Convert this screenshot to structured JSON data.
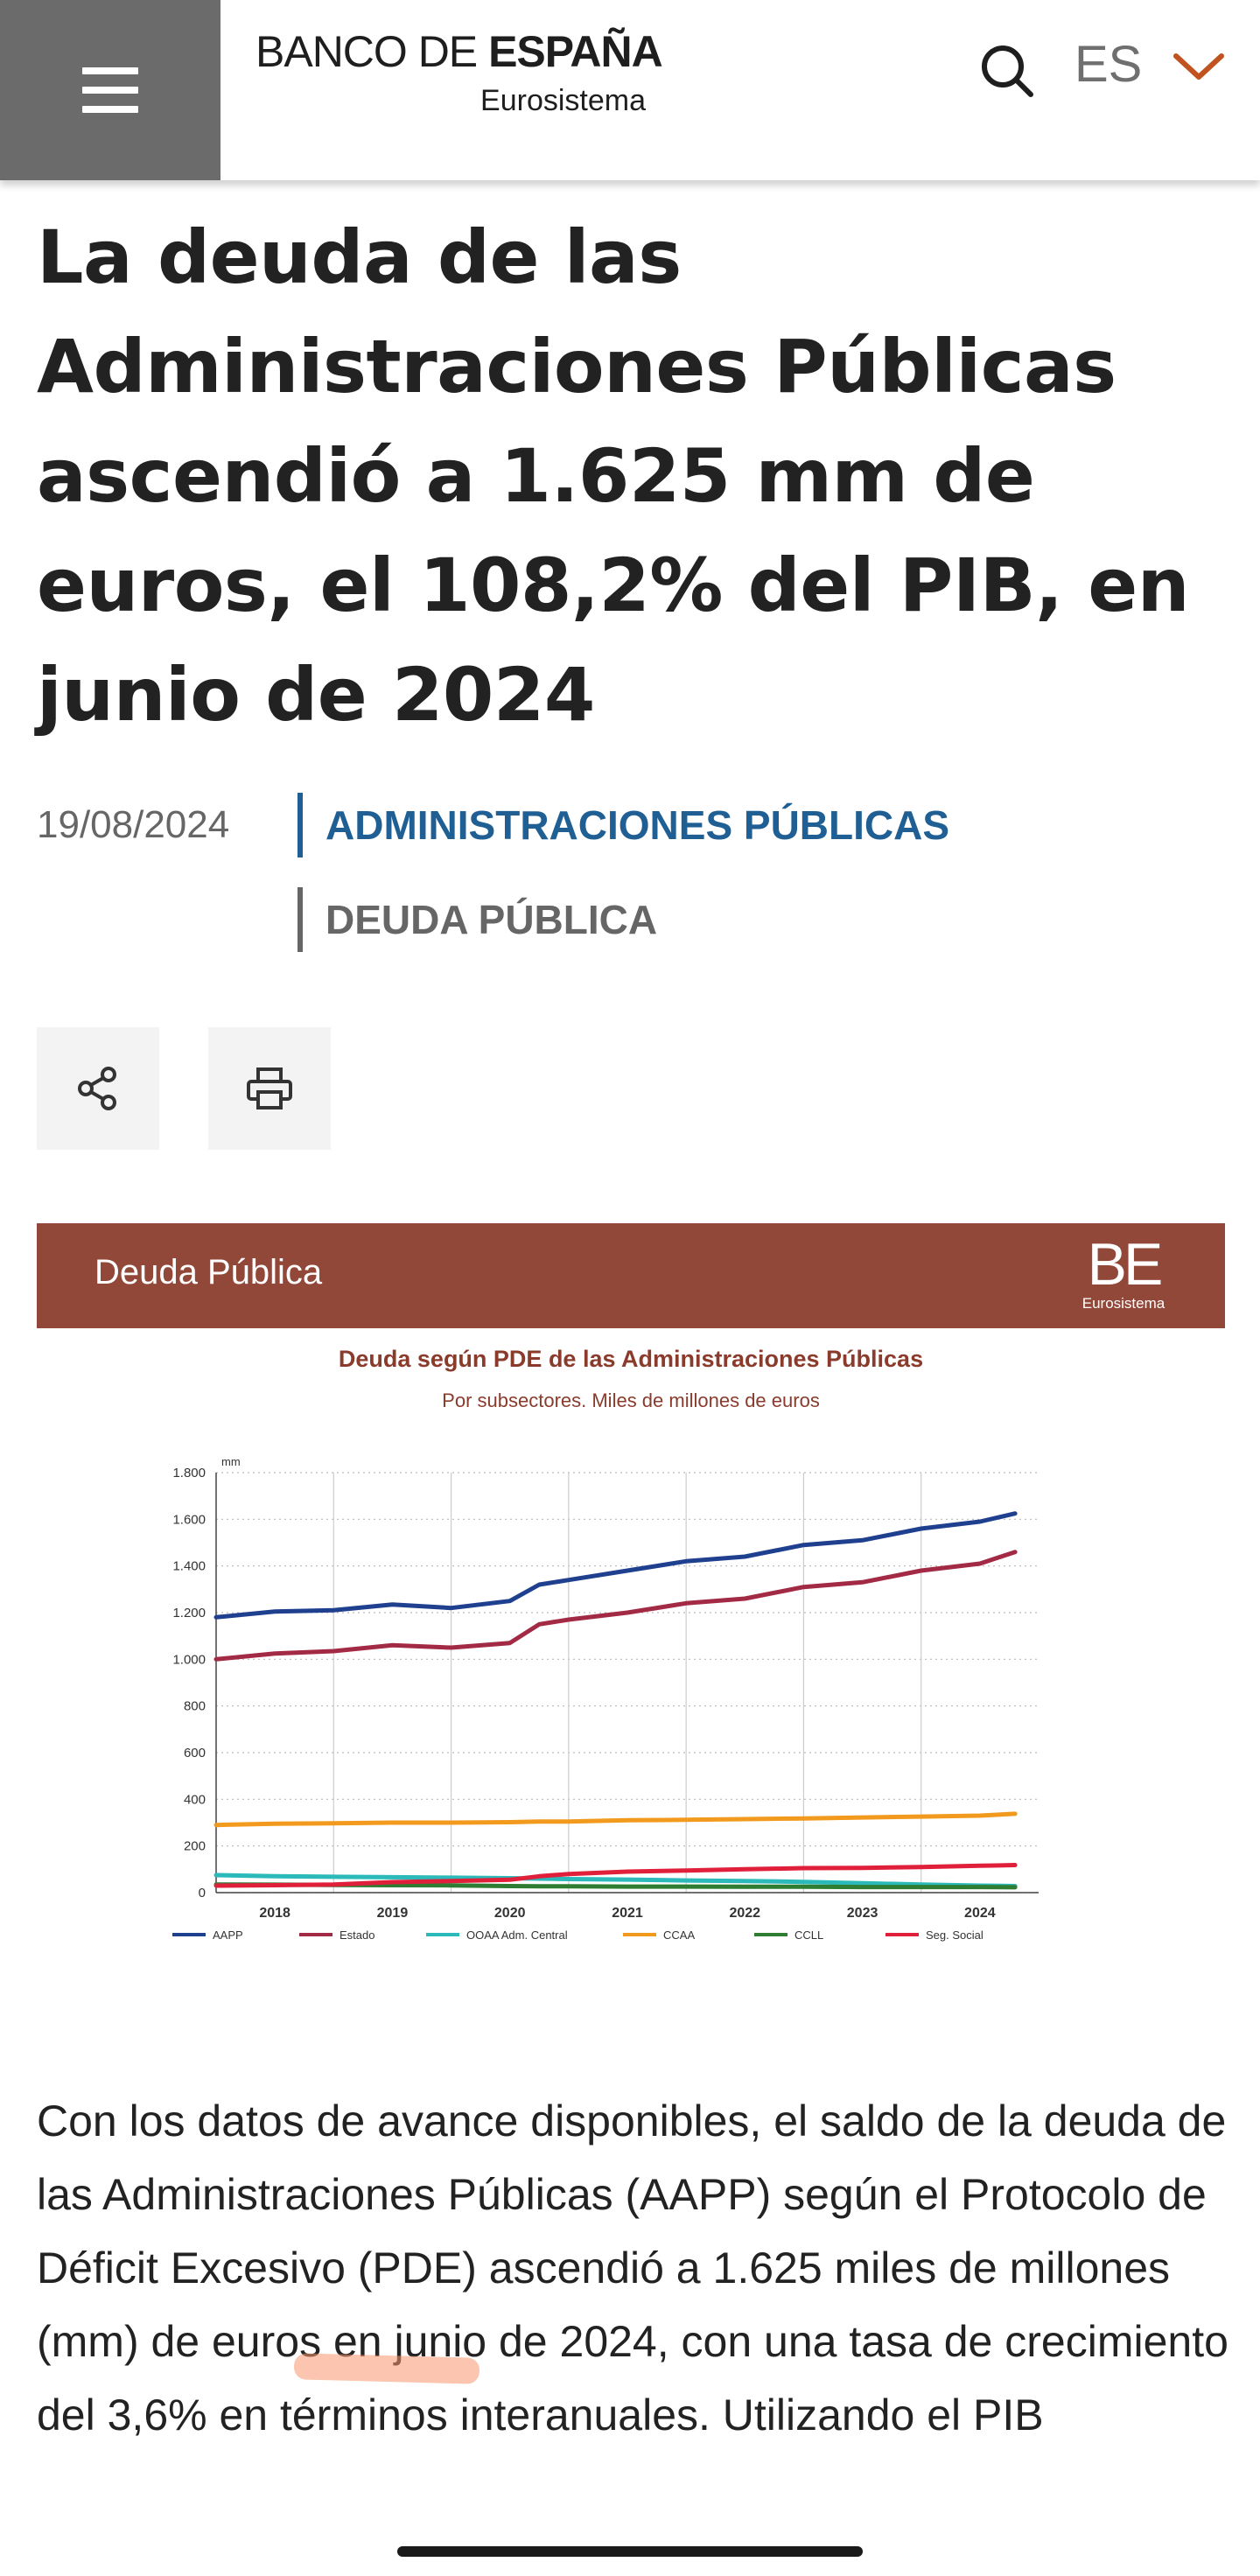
{
  "header": {
    "logo_line1_a": "BANCO DE ",
    "logo_line1_b": "ESPAÑA",
    "logo_line2": "Eurosistema",
    "language": "ES"
  },
  "article": {
    "title": "La deuda de las Administraciones Públicas ascendió a 1.625 mm de euros, el 108,2% del PIB, en junio de 2024",
    "date": "19/08/2024",
    "tags": [
      "ADMINISTRACIONES PÚBLICAS",
      "DEUDA PÚBLICA"
    ],
    "paragraph": "Con los datos de avance disponibles, el saldo de la deuda de las Administraciones Públicas (AAPP) según el Protocolo de Déficit Excesivo (PDE) ascendió a 1.625 miles de millones (mm) de euros en junio de 2024, con una tasa de crecimiento del 3,6% en términos interanuales. Utilizando el PIB"
  },
  "figure": {
    "banner_title": "Deuda Pública",
    "logo_be": "BE",
    "logo_sub": "Eurosistema"
  },
  "chart_data": {
    "type": "line",
    "title": "Deuda según PDE de las Administraciones Públicas",
    "subtitle": "Por subsectores. Miles de millones de euros",
    "y_unit_label": "mm",
    "ylim": [
      0,
      1800
    ],
    "yticks": [
      0,
      200,
      400,
      600,
      800,
      1000,
      1200,
      1400,
      1600,
      1800
    ],
    "ytick_labels": [
      "0",
      "200",
      "400",
      "600",
      "800",
      "1.000",
      "1.200",
      "1.400",
      "1.600",
      "1.800"
    ],
    "xlim": [
      2017.5,
      2024.5
    ],
    "xticks": [
      2018,
      2019,
      2020,
      2021,
      2022,
      2023,
      2024
    ],
    "grid": true,
    "legend_position": "bottom",
    "x": [
      2017.5,
      2018.0,
      2018.5,
      2019.0,
      2019.5,
      2020.0,
      2020.25,
      2020.5,
      2021.0,
      2021.5,
      2022.0,
      2022.5,
      2023.0,
      2023.5,
      2024.0,
      2024.3
    ],
    "series": [
      {
        "name": "AAPP",
        "color": "#1f3f8f",
        "values": [
          1180,
          1205,
          1210,
          1235,
          1220,
          1250,
          1320,
          1340,
          1380,
          1420,
          1440,
          1490,
          1510,
          1560,
          1590,
          1625
        ]
      },
      {
        "name": "Estado",
        "color": "#a32a45",
        "values": [
          1000,
          1025,
          1035,
          1060,
          1050,
          1070,
          1150,
          1170,
          1200,
          1240,
          1260,
          1310,
          1330,
          1380,
          1410,
          1460
        ]
      },
      {
        "name": "OOAA Adm. Central",
        "color": "#2bb9b9",
        "values": [
          75,
          70,
          68,
          66,
          64,
          62,
          60,
          58,
          56,
          52,
          50,
          46,
          40,
          35,
          30,
          28
        ]
      },
      {
        "name": "CCAA",
        "color": "#f29a1e",
        "values": [
          290,
          295,
          297,
          300,
          300,
          302,
          305,
          305,
          310,
          312,
          315,
          318,
          322,
          326,
          330,
          338
        ]
      },
      {
        "name": "CCLL",
        "color": "#2f7d32",
        "values": [
          35,
          34,
          33,
          32,
          31,
          28,
          27,
          27,
          26,
          26,
          25,
          25,
          24,
          24,
          24,
          23
        ]
      },
      {
        "name": "Seg. Social",
        "color": "#e0203a",
        "values": [
          30,
          32,
          35,
          45,
          50,
          55,
          70,
          80,
          90,
          95,
          100,
          105,
          106,
          110,
          115,
          118
        ]
      }
    ]
  }
}
